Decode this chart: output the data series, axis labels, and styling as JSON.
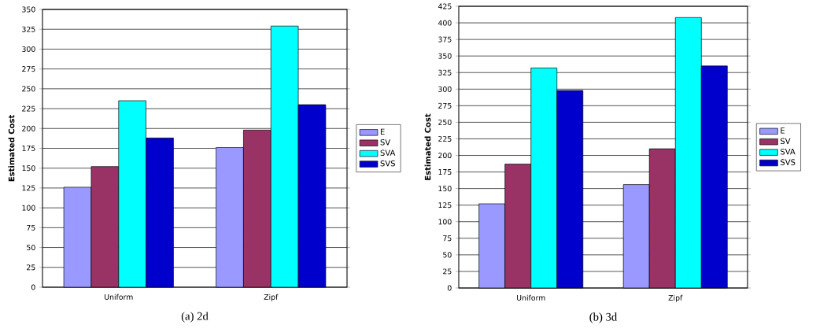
{
  "chart_data": [
    {
      "type": "bar",
      "categories": [
        "Uniform",
        "Zipf"
      ],
      "ylabel": "Estimated Cost",
      "ylim": [
        0,
        350
      ],
      "yticks": [
        0,
        25,
        50,
        75,
        100,
        125,
        150,
        175,
        200,
        225,
        250,
        275,
        300,
        325,
        350
      ],
      "grid": "y",
      "legend": "right",
      "annotations": [
        "(a) 2d"
      ],
      "series": [
        {
          "name": "E",
          "color": "#9999ff",
          "values": [
            126,
            176
          ]
        },
        {
          "name": "SV",
          "color": "#993366",
          "values": [
            152,
            198
          ]
        },
        {
          "name": "SVA",
          "color": "#00ffff",
          "values": [
            235,
            329
          ]
        },
        {
          "name": "SVS",
          "color": "#0000cc",
          "values": [
            188,
            230
          ]
        }
      ]
    },
    {
      "type": "bar",
      "categories": [
        "Uniform",
        "Zipf"
      ],
      "ylabel": "Estimated Cost",
      "ylim": [
        0,
        425
      ],
      "yticks": [
        0,
        25,
        50,
        75,
        100,
        125,
        150,
        175,
        200,
        225,
        250,
        275,
        300,
        325,
        350,
        375,
        400,
        425
      ],
      "grid": "y",
      "legend": "right",
      "annotations": [
        "(b) 3d"
      ],
      "series": [
        {
          "name": "E",
          "color": "#9999ff",
          "values": [
            127,
            156
          ]
        },
        {
          "name": "SV",
          "color": "#993366",
          "values": [
            187,
            210
          ]
        },
        {
          "name": "SVA",
          "color": "#00ffff",
          "values": [
            332,
            408
          ]
        },
        {
          "name": "SVS",
          "color": "#0000cc",
          "values": [
            298,
            335
          ]
        }
      ]
    }
  ]
}
